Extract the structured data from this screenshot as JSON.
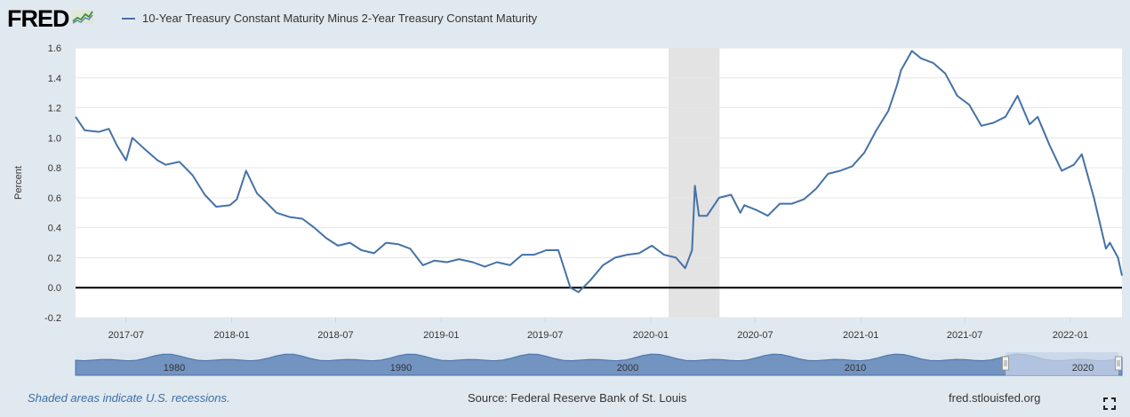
{
  "header": {
    "logo_text": "FRED",
    "logo_icon": "chart-line-icon",
    "legend_label": "10-Year Treasury Constant Maturity Minus 2-Year Treasury Constant Maturity"
  },
  "footer": {
    "recession_note": "Shaded areas indicate U.S. recessions.",
    "source": "Source: Federal Reserve Bank of St. Louis",
    "site": "fred.stlouisfed.org",
    "fullscreen_icon": "fullscreen-icon"
  },
  "navigator": {
    "labels": [
      "1980",
      "1990",
      "2000",
      "2010",
      "2020"
    ]
  },
  "colors": {
    "line": "#4572a7",
    "recession": "#e3e3e3",
    "navigator_fill": "#7393c0",
    "navigator_selection": "#c6d3e8",
    "background": "#e1e9f0"
  },
  "chart_data": {
    "type": "line",
    "title": "",
    "xlabel": "",
    "ylabel": "Percent",
    "ylim": [
      -0.2,
      1.6
    ],
    "yticks": [
      "-0.2",
      "0.0",
      "0.2",
      "0.4",
      "0.6",
      "0.8",
      "1.0",
      "1.2",
      "1.4",
      "1.6"
    ],
    "xlim": [
      "2017-04-04",
      "2022-04-01"
    ],
    "xticks": [
      "2017-07",
      "2018-01",
      "2018-07",
      "2019-01",
      "2019-07",
      "2020-01",
      "2020-07",
      "2021-01",
      "2021-07",
      "2022-01"
    ],
    "zero_line": true,
    "recessions": [
      [
        "2020-02-01",
        "2020-04-30"
      ]
    ],
    "series": [
      {
        "name": "10-Year Treasury Constant Maturity Minus 2-Year Treasury Constant Maturity",
        "x": [
          "2017-04-04",
          "2017-04-20",
          "2017-05-15",
          "2017-06-01",
          "2017-06-15",
          "2017-07-01",
          "2017-07-12",
          "2017-08-01",
          "2017-08-25",
          "2017-09-08",
          "2017-10-02",
          "2017-10-25",
          "2017-11-15",
          "2017-12-05",
          "2017-12-29",
          "2018-01-10",
          "2018-01-26",
          "2018-02-14",
          "2018-03-02",
          "2018-03-20",
          "2018-04-13",
          "2018-05-04",
          "2018-05-25",
          "2018-06-15",
          "2018-07-05",
          "2018-07-26",
          "2018-08-15",
          "2018-09-06",
          "2018-09-27",
          "2018-10-18",
          "2018-11-08",
          "2018-11-30",
          "2018-12-20",
          "2019-01-11",
          "2019-02-01",
          "2019-02-25",
          "2019-03-18",
          "2019-04-08",
          "2019-05-01",
          "2019-05-22",
          "2019-06-12",
          "2019-07-03",
          "2019-07-24",
          "2019-08-14",
          "2019-08-28",
          "2019-09-18",
          "2019-10-10",
          "2019-10-31",
          "2019-11-21",
          "2019-12-12",
          "2020-01-03",
          "2020-01-24",
          "2020-02-14",
          "2020-03-01",
          "2020-03-13",
          "2020-03-18",
          "2020-03-25",
          "2020-04-08",
          "2020-04-29",
          "2020-05-20",
          "2020-06-05",
          "2020-06-12",
          "2020-07-02",
          "2020-07-23",
          "2020-08-13",
          "2020-09-03",
          "2020-09-24",
          "2020-10-15",
          "2020-11-05",
          "2020-11-26",
          "2020-12-17",
          "2021-01-07",
          "2021-01-28",
          "2021-02-18",
          "2021-03-05",
          "2021-03-12",
          "2021-03-31",
          "2021-04-16",
          "2021-05-07",
          "2021-05-28",
          "2021-06-18",
          "2021-07-09",
          "2021-07-30",
          "2021-08-20",
          "2021-09-10",
          "2021-10-01",
          "2021-10-22",
          "2021-11-05",
          "2021-11-26",
          "2021-12-17",
          "2022-01-07",
          "2022-01-21",
          "2022-02-11",
          "2022-03-04",
          "2022-03-11",
          "2022-03-25",
          "2022-04-01"
        ],
        "values": [
          1.14,
          1.05,
          1.04,
          1.06,
          0.95,
          0.85,
          1.0,
          0.93,
          0.85,
          0.82,
          0.84,
          0.75,
          0.62,
          0.54,
          0.55,
          0.59,
          0.78,
          0.63,
          0.57,
          0.5,
          0.47,
          0.46,
          0.4,
          0.33,
          0.28,
          0.3,
          0.25,
          0.23,
          0.3,
          0.29,
          0.26,
          0.15,
          0.18,
          0.17,
          0.19,
          0.17,
          0.14,
          0.17,
          0.15,
          0.22,
          0.22,
          0.25,
          0.25,
          0.0,
          -0.03,
          0.05,
          0.15,
          0.2,
          0.22,
          0.23,
          0.28,
          0.22,
          0.2,
          0.13,
          0.25,
          0.68,
          0.48,
          0.48,
          0.6,
          0.62,
          0.5,
          0.55,
          0.52,
          0.48,
          0.56,
          0.56,
          0.59,
          0.66,
          0.76,
          0.78,
          0.81,
          0.9,
          1.05,
          1.18,
          1.35,
          1.45,
          1.58,
          1.53,
          1.5,
          1.43,
          1.28,
          1.22,
          1.08,
          1.1,
          1.14,
          1.28,
          1.09,
          1.14,
          0.95,
          0.78,
          0.82,
          0.89,
          0.6,
          0.26,
          0.3,
          0.2,
          0.08
        ]
      }
    ]
  }
}
